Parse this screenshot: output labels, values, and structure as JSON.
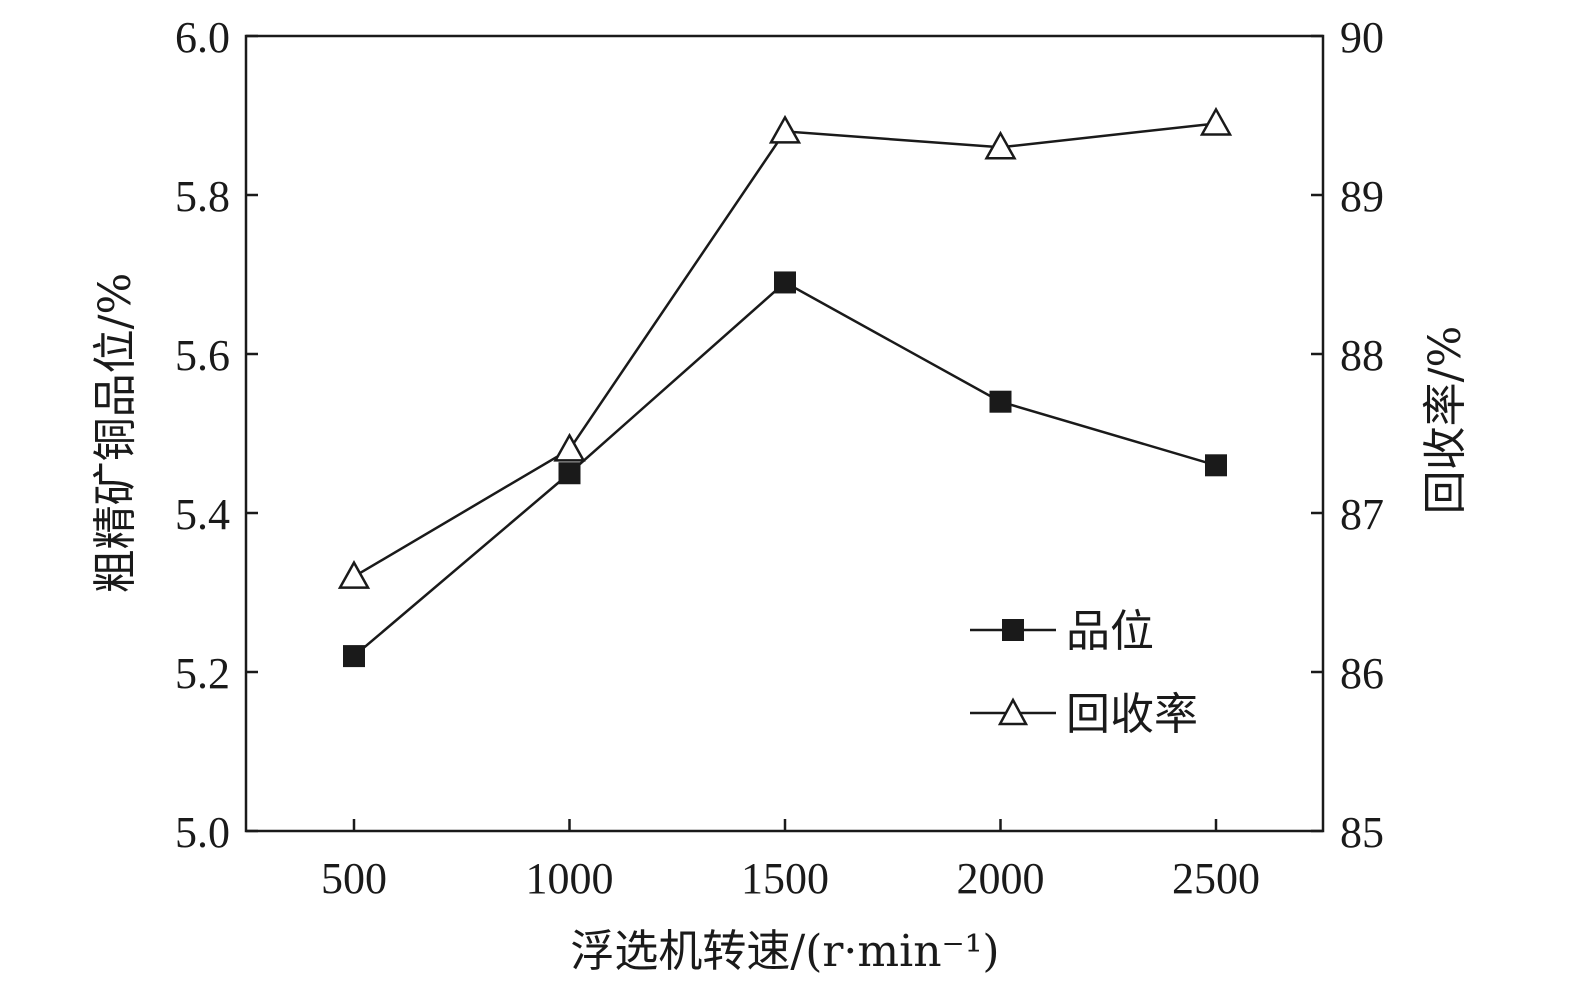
{
  "chart_data": {
    "type": "line",
    "x": [
      500,
      1000,
      1500,
      2000,
      2500
    ],
    "xlabel": "浮选机转速/(r·min⁻¹)",
    "ylabel_left": "粗精矿铜品位/%",
    "ylabel_right": "回收率/%",
    "ylim_left": [
      5.0,
      6.0
    ],
    "ylim_right": [
      85,
      90
    ],
    "x_ticks": [
      "500",
      "1000",
      "1500",
      "2000",
      "2500"
    ],
    "y_left_ticks": [
      "5.0",
      "5.2",
      "5.4",
      "5.6",
      "5.8",
      "6.0"
    ],
    "y_right_ticks": [
      "85",
      "86",
      "87",
      "88",
      "89",
      "90"
    ],
    "series": [
      {
        "name": "品位",
        "axis": "left",
        "marker": "filled-square",
        "values": [
          5.22,
          5.45,
          5.69,
          5.54,
          5.46
        ]
      },
      {
        "name": "回收率",
        "axis": "right",
        "marker": "open-triangle",
        "values": [
          86.6,
          87.4,
          89.4,
          89.3,
          89.45
        ]
      }
    ],
    "legend_position": "lower-right",
    "grid": false
  }
}
